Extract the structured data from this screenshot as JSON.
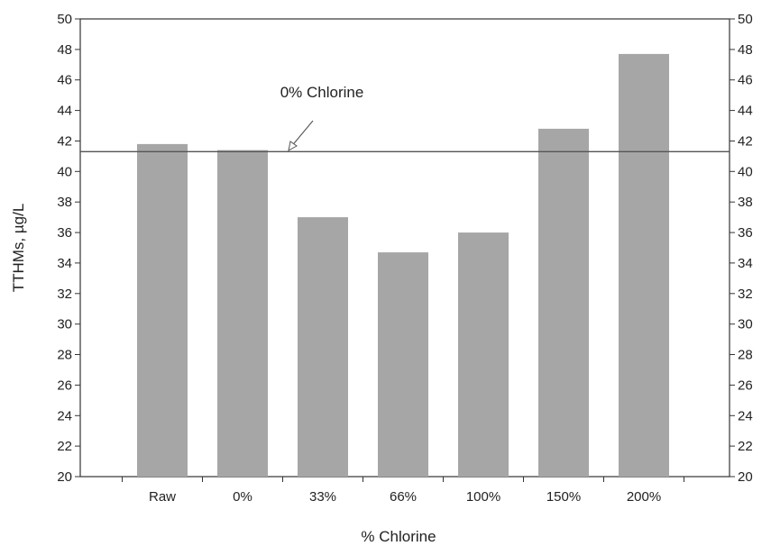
{
  "chart_data": {
    "type": "bar",
    "title": "",
    "xlabel": "% Chlorine",
    "ylabel": "TTHMs, µg/L",
    "categories": [
      "Raw",
      "0%",
      "33%",
      "66%",
      "100%",
      "150%",
      "200%"
    ],
    "values": [
      41.8,
      41.4,
      37.0,
      34.7,
      36.0,
      42.8,
      47.7
    ],
    "ylim": [
      20,
      50
    ],
    "y_ticks": [
      "20",
      "22",
      "24",
      "26",
      "28",
      "30",
      "32",
      "34",
      "36",
      "38",
      "40",
      "42",
      "44",
      "46",
      "48",
      "50"
    ],
    "secondary_y_axis": true,
    "grid": false,
    "legend": "none",
    "bar_color": "#a6a6a6",
    "reference_line": {
      "value": 41.3,
      "label": "0% Chlorine",
      "color": "#555555"
    }
  }
}
